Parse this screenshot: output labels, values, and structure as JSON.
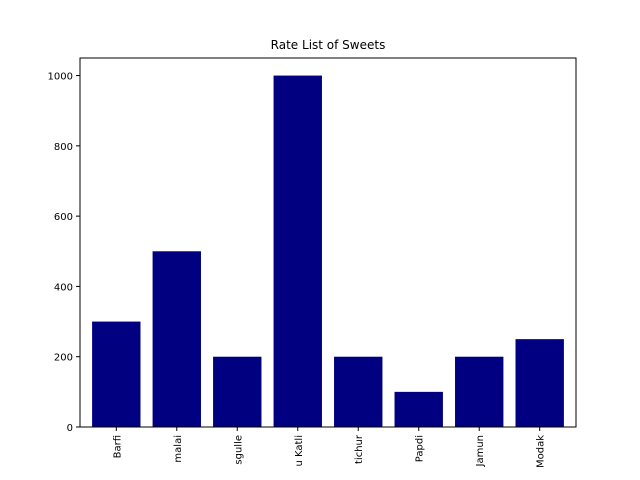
{
  "chart_data": {
    "type": "bar",
    "title": "Rate List of Sweets",
    "xlabel": "",
    "ylabel": "",
    "categories": [
      "Barfi",
      "Rasmalai",
      "Rasgulle",
      "Kaju Katli",
      "Motichur",
      "Papdi",
      "Gulab Jamun",
      "Modak"
    ],
    "visible_tick_labels": [
      "Barfi",
      "malai",
      "sgulle",
      "u Katli",
      "tichur",
      "Papdi",
      "Jamun",
      "Modak"
    ],
    "values": [
      300,
      500,
      200,
      1000,
      200,
      100,
      200,
      250
    ],
    "ylim": [
      0,
      1050
    ],
    "yticks": [
      0,
      200,
      400,
      600,
      800,
      1000
    ],
    "bar_color": "#000080",
    "grid": false,
    "legend": "none",
    "x_tick_rotation": "vertical"
  }
}
